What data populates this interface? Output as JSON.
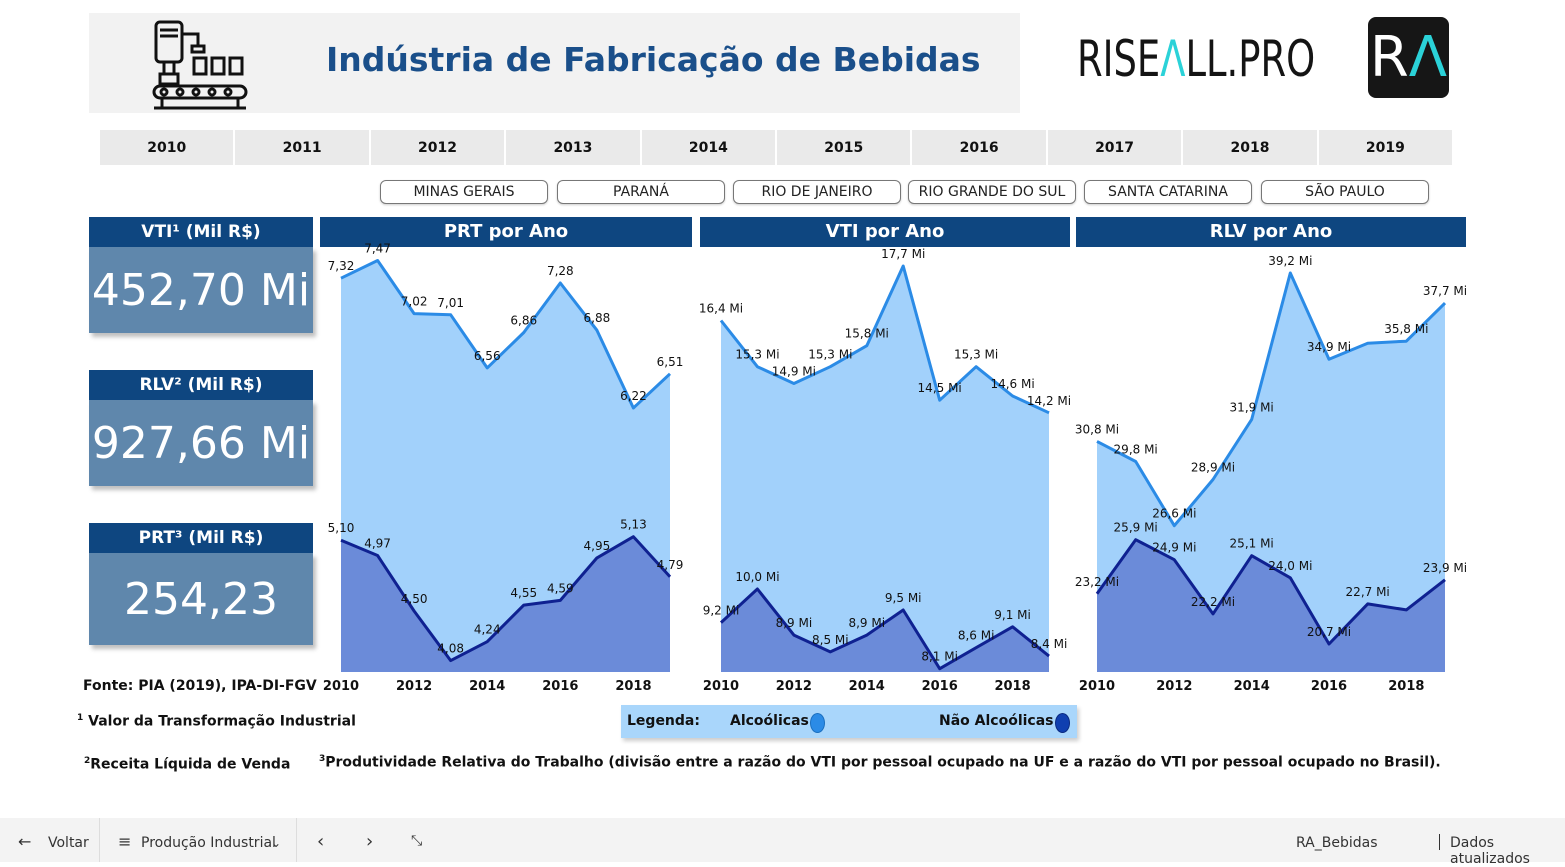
{
  "header": {
    "title": "Indústria de Fabricação de Bebidas",
    "brand_left": "RISE",
    "brand_accent": "Λ",
    "brand_right": "LL.PRO",
    "logo_left": "R",
    "logo_right": "Λ"
  },
  "years": [
    "2010",
    "2011",
    "2012",
    "2013",
    "2014",
    "2015",
    "2016",
    "2017",
    "2018",
    "2019"
  ],
  "states": [
    "MINAS GERAIS",
    "PARANÁ",
    "RIO DE JANEIRO",
    "RIO GRANDE DO SUL",
    "SANTA CATARINA",
    "SÃO PAULO"
  ],
  "kpis": [
    {
      "title": "VTI¹ (Mil R$)",
      "value": "452,70 Mi"
    },
    {
      "title": "RLV² (Mil R$)",
      "value": "927,66 Mi"
    },
    {
      "title": "PRT³ (Mil R$)",
      "value": "254,23"
    }
  ],
  "colors": {
    "alc_fill": "#a2d1fb",
    "alc_line": "#2b8be6",
    "nao_fill": "#6b8bd9",
    "nao_line": "#0f2191",
    "header_blue": "#0e4680",
    "kpi_blue": "#5f87ac"
  },
  "chart_data": [
    {
      "type": "area",
      "title": "PRT por Ano",
      "x": [
        2010,
        2011,
        2012,
        2013,
        2014,
        2015,
        2016,
        2017,
        2018,
        2019
      ],
      "x_ticks": [
        "2010",
        "2012",
        "2014",
        "2016",
        "2018"
      ],
      "series": [
        {
          "name": "Alcoólicas",
          "values": [
            7.32,
            7.47,
            7.02,
            7.01,
            6.56,
            6.86,
            7.28,
            6.88,
            6.22,
            6.51
          ],
          "labels": [
            "7,32",
            "7,47",
            "7,02",
            "7,01",
            "6,56",
            "6,86",
            "7,28",
            "6,88",
            "6,22",
            "6,51"
          ]
        },
        {
          "name": "Não Alcoólicas",
          "values": [
            5.1,
            4.97,
            4.5,
            4.08,
            4.24,
            4.55,
            4.59,
            4.95,
            5.13,
            4.79
          ],
          "labels": [
            "5,10",
            "4,97",
            "4,50",
            "4,08",
            "4,24",
            "4,55",
            "4,59",
            "4,95",
            "5,13",
            "4,79"
          ]
        }
      ]
    },
    {
      "type": "area",
      "title": "VTI por Ano",
      "x": [
        2010,
        2011,
        2012,
        2013,
        2014,
        2015,
        2016,
        2017,
        2018,
        2019
      ],
      "x_ticks": [
        "2010",
        "2012",
        "2014",
        "2016",
        "2018"
      ],
      "series": [
        {
          "name": "Alcoólicas",
          "values": [
            16.4,
            15.3,
            14.9,
            15.3,
            15.8,
            17.7,
            14.5,
            15.3,
            14.6,
            14.2
          ],
          "labels": [
            "16,4 Mi",
            "15,3 Mi",
            "14,9 Mi",
            "15,3 Mi",
            "15,8 Mi",
            "17,7 Mi",
            "14,5 Mi",
            "15,3 Mi",
            "14,6 Mi",
            "14,2 Mi"
          ]
        },
        {
          "name": "Não Alcoólicas",
          "values": [
            9.2,
            10.0,
            8.9,
            8.5,
            8.9,
            9.5,
            8.1,
            8.6,
            9.1,
            8.4
          ],
          "labels": [
            "9,2 Mi",
            "10,0 Mi",
            "8,9 Mi",
            "8,5 Mi",
            "8,9 Mi",
            "9,5 Mi",
            "8,1 Mi",
            "8,6 Mi",
            "9,1 Mi",
            "8,4 Mi"
          ]
        }
      ]
    },
    {
      "type": "area",
      "title": "RLV por Ano",
      "x": [
        2010,
        2011,
        2012,
        2013,
        2014,
        2015,
        2016,
        2017,
        2018,
        2019
      ],
      "x_ticks": [
        "2010",
        "2012",
        "2014",
        "2016",
        "2018"
      ],
      "series": [
        {
          "name": "Alcoólicas",
          "values": [
            30.8,
            29.8,
            26.6,
            28.9,
            31.9,
            39.2,
            34.9,
            35.7,
            35.8,
            37.7
          ],
          "labels": [
            "30,8 Mi",
            "29,8 Mi",
            "26,6 Mi",
            "28,9 Mi",
            "31,9 Mi",
            "39,2 Mi",
            "34,9 Mi",
            "",
            "35,8 Mi",
            "37,7 Mi"
          ]
        },
        {
          "name": "Não Alcoólicas",
          "values": [
            23.2,
            25.9,
            24.9,
            22.2,
            25.1,
            24.0,
            20.7,
            22.7,
            22.4,
            23.9
          ],
          "labels": [
            "23,2 Mi",
            "25,9 Mi",
            "24,9 Mi",
            "22,2 Mi",
            "25,1 Mi",
            "24,0 Mi",
            "20,7 Mi",
            "22,7 Mi",
            "",
            "23,9 Mi"
          ]
        }
      ]
    }
  ],
  "footer": {
    "source": "Fonte: PIA (2019), IPA-DI-FGV",
    "note1": "Valor da Transformação Industrial",
    "note2": "Receita Líquida de Venda",
    "note3": "Produtividade Relativa do Trabalho (divisão entre a razão do VTI por pessoal ocupado na UF e a razão do VTI por pessoal ocupado no Brasil).",
    "sup1": "1",
    "sup2": "2",
    "sup3": "3"
  },
  "legend": {
    "label": "Legenda:",
    "alc": "Alcoólicas",
    "nao": "Não Alcoólicas"
  },
  "bottombar": {
    "back": "Voltar",
    "page": "Produção Industrial",
    "report": "RA_Bebidas",
    "status": "Dados atualizados"
  }
}
